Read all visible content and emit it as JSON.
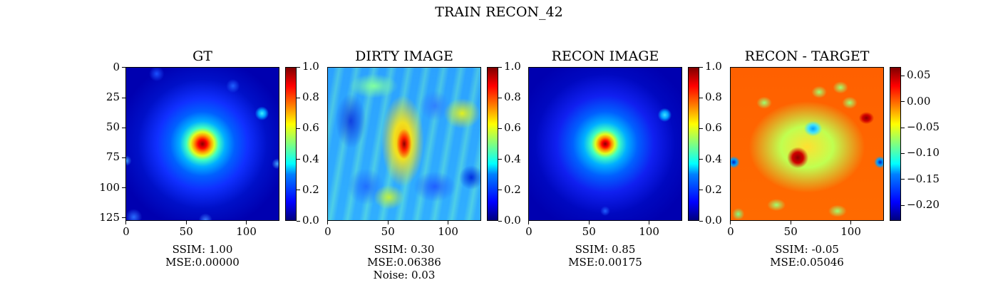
{
  "suptitle": "TRAIN RECON_42",
  "chart_data": [
    {
      "type": "heatmap",
      "title": "GT",
      "colormap": "jet",
      "image_size": [
        128,
        128
      ],
      "x_ticks": [
        "0",
        "50",
        "100"
      ],
      "y_ticks": [
        "0",
        "25",
        "50",
        "75",
        "100",
        "125"
      ],
      "colorbar_range": [
        0.0,
        1.0
      ],
      "colorbar_ticks": [
        "0.0",
        "0.2",
        "0.4",
        "0.6",
        "0.8",
        "1.0"
      ],
      "metrics": [
        "SSIM: 1.00",
        "MSE:0.00000"
      ]
    },
    {
      "type": "heatmap",
      "title": "DIRTY IMAGE",
      "colormap": "jet",
      "image_size": [
        128,
        128
      ],
      "x_ticks": [
        "0",
        "50",
        "100"
      ],
      "colorbar_range": [
        0.0,
        1.0
      ],
      "colorbar_ticks": [
        "0.0",
        "0.2",
        "0.4",
        "0.6",
        "0.8",
        "1.0"
      ],
      "metrics": [
        "SSIM: 0.30",
        "MSE:0.06386",
        "Noise: 0.03"
      ]
    },
    {
      "type": "heatmap",
      "title": "RECON IMAGE",
      "colormap": "jet",
      "image_size": [
        128,
        128
      ],
      "x_ticks": [
        "0",
        "50",
        "100"
      ],
      "colorbar_range": [
        0.0,
        1.0
      ],
      "colorbar_ticks": [
        "0.0",
        "0.2",
        "0.4",
        "0.6",
        "0.8",
        "1.0"
      ],
      "metrics": [
        "SSIM: 0.85",
        "MSE:0.00175"
      ]
    },
    {
      "type": "heatmap",
      "title": "RECON - TARGET",
      "colormap": "jet",
      "image_size": [
        128,
        128
      ],
      "x_ticks": [
        "0",
        "50",
        "100"
      ],
      "colorbar_range": [
        -0.23,
        0.067
      ],
      "colorbar_ticks": [
        "0.05",
        "0.00",
        "−0.05",
        "−0.10",
        "−0.15",
        "−0.20"
      ],
      "colorbar_tick_values": [
        0.05,
        0.0,
        -0.05,
        -0.1,
        -0.15,
        -0.2
      ],
      "metrics": [
        "SSIM: -0.05",
        "MSE:0.05046"
      ]
    }
  ]
}
